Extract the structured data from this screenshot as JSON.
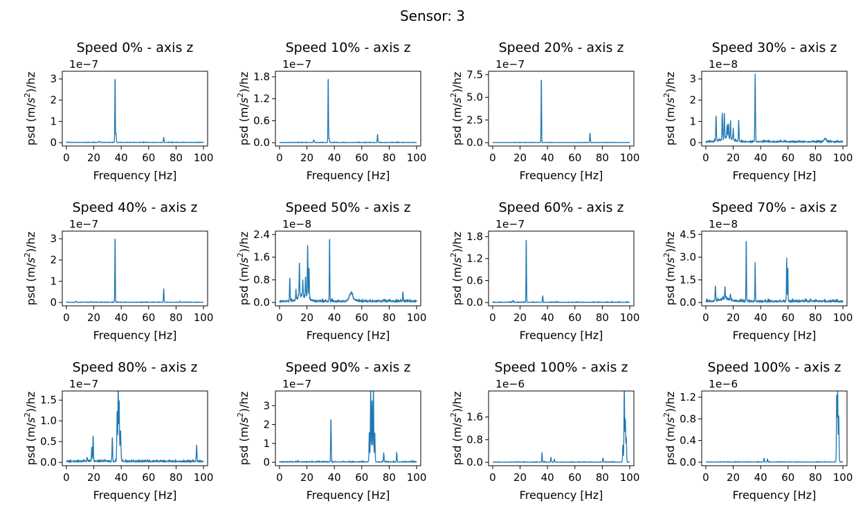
{
  "figure": {
    "suptitle": "Sensor: 3",
    "line_color": "#1f77b4"
  },
  "chart_data": [
    {
      "type": "line",
      "title": "Speed 0% - axis z",
      "xlabel": "Frequency [Hz]",
      "ylabel_pre": "psd (m/",
      "ylabel_s": "s",
      "ylabel_sup": "2",
      "ylabel_post": ")/hz",
      "offset_text": "1e−7",
      "xlim": [
        -3,
        103
      ],
      "xticks": [
        0,
        20,
        40,
        60,
        80,
        100
      ],
      "ylim": [
        -0.16,
        3.36
      ],
      "yticks": [
        0,
        1,
        2,
        3
      ],
      "ytick_labels": [
        "0",
        "1",
        "2",
        "3"
      ],
      "series": [
        {
          "noise": 0.012,
          "seed": 11,
          "peaks": [
            [
              24,
              0.06,
              0.4
            ],
            [
              35.5,
              3.2,
              0.25
            ],
            [
              36.2,
              0.45,
              0.3
            ],
            [
              71,
              0.25,
              0.3
            ]
          ],
          "bumps": []
        }
      ]
    },
    {
      "type": "line",
      "title": "Speed 10% - axis z",
      "xlabel": "Frequency [Hz]",
      "ylabel_pre": "psd (m/",
      "ylabel_s": "s",
      "ylabel_sup": "2",
      "ylabel_post": ")/hz",
      "offset_text": "1e−7",
      "xlim": [
        -3,
        103
      ],
      "xticks": [
        0,
        20,
        40,
        60,
        80,
        100
      ],
      "ylim": [
        -0.09,
        1.95
      ],
      "yticks": [
        0,
        0.6,
        1.2,
        1.8
      ],
      "ytick_labels": [
        "0.0",
        "0.6",
        "1.2",
        "1.8"
      ],
      "series": [
        {
          "noise": 0.008,
          "seed": 12,
          "peaks": [
            [
              25,
              0.07,
              0.4
            ],
            [
              35.5,
              1.86,
              0.25
            ],
            [
              36.2,
              0.12,
              0.3
            ],
            [
              71.5,
              0.22,
              0.3
            ]
          ],
          "bumps": []
        }
      ]
    },
    {
      "type": "line",
      "title": "Speed 20% - axis z",
      "xlabel": "Frequency [Hz]",
      "ylabel_pre": "psd (m/",
      "ylabel_s": "s",
      "ylabel_sup": "2",
      "ylabel_post": ")/hz",
      "offset_text": "1e−7",
      "xlim": [
        -3,
        103
      ],
      "xticks": [
        0,
        20,
        40,
        60,
        80,
        100
      ],
      "ylim": [
        -0.37,
        7.87
      ],
      "yticks": [
        0,
        2.5,
        5.0,
        7.5
      ],
      "ytick_labels": [
        "0.0",
        "2.5",
        "5.0",
        "7.5"
      ],
      "series": [
        {
          "noise": 0.02,
          "seed": 13,
          "peaks": [
            [
              35.5,
              7.45,
              0.25
            ],
            [
              71,
              1.05,
              0.3
            ]
          ],
          "bumps": []
        }
      ]
    },
    {
      "type": "line",
      "title": "Speed 30% - axis z",
      "xlabel": "Frequency [Hz]",
      "ylabel_pre": "psd (m/",
      "ylabel_s": "s",
      "ylabel_sup": "2",
      "ylabel_post": ")/hz",
      "offset_text": "1e−8",
      "xlim": [
        -3,
        103
      ],
      "xticks": [
        0,
        20,
        40,
        60,
        80,
        100
      ],
      "ylim": [
        -0.16,
        3.36
      ],
      "yticks": [
        0,
        1,
        2,
        3
      ],
      "ytick_labels": [
        "0",
        "1",
        "2",
        "3"
      ],
      "series": [
        {
          "noise": 0.06,
          "seed": 14,
          "peaks": [
            [
              7.5,
              1.25,
              0.3
            ],
            [
              12,
              1.2,
              0.3
            ],
            [
              13.5,
              1.25,
              0.3
            ],
            [
              15.5,
              0.6,
              0.3
            ],
            [
              16.5,
              0.7,
              0.3
            ],
            [
              18,
              0.9,
              0.3
            ],
            [
              20,
              0.5,
              0.3
            ],
            [
              24,
              1.0,
              0.3
            ],
            [
              36,
              3.2,
              0.3
            ],
            [
              87,
              0.15,
              1.0
            ]
          ],
          "bumps": [
            [
              15,
              0.25,
              6
            ]
          ]
        }
      ]
    },
    {
      "type": "line",
      "title": "Speed 40% - axis z",
      "xlabel": "Frequency [Hz]",
      "ylabel_pre": "psd (m/",
      "ylabel_s": "s",
      "ylabel_sup": "2",
      "ylabel_post": ")/hz",
      "offset_text": "1e−7",
      "xlim": [
        -3,
        103
      ],
      "xticks": [
        0,
        20,
        40,
        60,
        80,
        100
      ],
      "ylim": [
        -0.16,
        3.36
      ],
      "yticks": [
        0,
        1,
        2,
        3
      ],
      "ytick_labels": [
        "0",
        "1",
        "2",
        "3"
      ],
      "series": [
        {
          "noise": 0.012,
          "seed": 15,
          "peaks": [
            [
              7,
              0.05,
              0.4
            ],
            [
              18,
              0.04,
              0.4
            ],
            [
              35.5,
              3.22,
              0.25
            ],
            [
              71,
              0.65,
              0.3
            ],
            [
              83,
              0.03,
              0.4
            ]
          ],
          "bumps": []
        }
      ]
    },
    {
      "type": "line",
      "title": "Speed 50% - axis z",
      "xlabel": "Frequency [Hz]",
      "ylabel_pre": "psd (m/",
      "ylabel_s": "s",
      "ylabel_sup": "2",
      "ylabel_post": ")/hz",
      "offset_text": "1e−8",
      "xlim": [
        -3,
        103
      ],
      "xticks": [
        0,
        20,
        40,
        60,
        80,
        100
      ],
      "ylim": [
        -0.12,
        2.52
      ],
      "yticks": [
        0,
        0.8,
        1.6,
        2.4
      ],
      "ytick_labels": [
        "0.0",
        "0.8",
        "1.6",
        "2.4"
      ],
      "series": [
        {
          "noise": 0.06,
          "seed": 16,
          "peaks": [
            [
              7.5,
              0.85,
              0.3
            ],
            [
              12,
              0.35,
              0.3
            ],
            [
              14.5,
              1.2,
              0.3
            ],
            [
              17,
              0.5,
              0.3
            ],
            [
              19,
              0.7,
              0.3
            ],
            [
              20.5,
              1.95,
              0.3
            ],
            [
              21.5,
              1.1,
              0.3
            ],
            [
              36.5,
              2.35,
              0.25
            ],
            [
              52,
              0.22,
              1.5
            ],
            [
              90,
              0.35,
              0.3
            ]
          ],
          "bumps": [
            [
              17,
              0.3,
              5
            ],
            [
              53,
              0.12,
              3
            ]
          ]
        }
      ]
    },
    {
      "type": "line",
      "title": "Speed 60% - axis z",
      "xlabel": "Frequency [Hz]",
      "ylabel_pre": "psd (m/",
      "ylabel_s": "s",
      "ylabel_sup": "2",
      "ylabel_post": ")/hz",
      "offset_text": "1e−7",
      "xlim": [
        -3,
        103
      ],
      "xticks": [
        0,
        20,
        40,
        60,
        80,
        100
      ],
      "ylim": [
        -0.09,
        1.95
      ],
      "yticks": [
        0,
        0.6,
        1.2,
        1.8
      ],
      "ytick_labels": [
        "0.0",
        "0.6",
        "1.2",
        "1.8"
      ],
      "series": [
        {
          "noise": 0.01,
          "seed": 17,
          "peaks": [
            [
              15,
              0.05,
              0.4
            ],
            [
              24.5,
              1.83,
              0.25
            ],
            [
              36.5,
              0.18,
              0.3
            ]
          ],
          "bumps": []
        }
      ]
    },
    {
      "type": "line",
      "title": "Speed 70% - axis z",
      "xlabel": "Frequency [Hz]",
      "ylabel_pre": "psd (m/",
      "ylabel_s": "s",
      "ylabel_sup": "2",
      "ylabel_post": ")/hz",
      "offset_text": "1e−8",
      "xlim": [
        -3,
        103
      ],
      "xticks": [
        0,
        20,
        40,
        60,
        80,
        100
      ],
      "ylim": [
        -0.22,
        4.72
      ],
      "yticks": [
        0,
        1.5,
        3.0,
        4.5
      ],
      "ytick_labels": [
        "0.0",
        "1.5",
        "3.0",
        "4.5"
      ],
      "series": [
        {
          "noise": 0.12,
          "seed": 18,
          "peaks": [
            [
              7,
              1.05,
              0.3
            ],
            [
              14,
              0.8,
              0.3
            ],
            [
              18,
              0.45,
              0.3
            ],
            [
              29.5,
              4.3,
              0.25
            ],
            [
              36,
              2.5,
              0.25
            ],
            [
              59,
              2.9,
              0.25
            ],
            [
              59.8,
              2.35,
              0.25
            ]
          ],
          "bumps": [
            [
              14,
              0.25,
              5
            ]
          ]
        }
      ]
    },
    {
      "type": "line",
      "title": "Speed 80% - axis z",
      "xlabel": "Frequency [Hz]",
      "ylabel_pre": "psd (m/",
      "ylabel_s": "s",
      "ylabel_sup": "2",
      "ylabel_post": ")/hz",
      "offset_text": "1e−7",
      "xlim": [
        -3,
        103
      ],
      "xticks": [
        0,
        20,
        40,
        60,
        80,
        100
      ],
      "ylim": [
        -0.08,
        1.72
      ],
      "yticks": [
        0,
        0.5,
        1.0,
        1.5
      ],
      "ytick_labels": [
        "0.0",
        "0.5",
        "1.0",
        "1.5"
      ],
      "series": [
        {
          "noise": 0.035,
          "seed": 19,
          "peaks": [
            [
              15,
              0.08,
              0.4
            ],
            [
              18.5,
              0.35,
              0.3
            ],
            [
              19.5,
              0.6,
              0.3
            ],
            [
              33.5,
              0.6,
              0.3
            ],
            [
              37,
              1.1,
              0.3
            ],
            [
              37.8,
              1.63,
              0.3
            ],
            [
              38.5,
              1.3,
              0.3
            ],
            [
              39.5,
              0.7,
              0.4
            ],
            [
              95,
              0.4,
              0.3
            ]
          ],
          "bumps": [
            [
              38,
              0.25,
              1.4
            ]
          ]
        }
      ]
    },
    {
      "type": "line",
      "title": "Speed 90% - axis z",
      "xlabel": "Frequency [Hz]",
      "ylabel_pre": "psd (m/",
      "ylabel_s": "s",
      "ylabel_sup": "2",
      "ylabel_post": ")/hz",
      "offset_text": "1e−7",
      "xlim": [
        -3,
        103
      ],
      "xticks": [
        0,
        20,
        40,
        60,
        80,
        100
      ],
      "ylim": [
        -0.18,
        3.78
      ],
      "yticks": [
        0,
        1,
        2,
        3
      ],
      "ytick_labels": [
        "0",
        "1",
        "2",
        "3"
      ],
      "series": [
        {
          "noise": 0.03,
          "seed": 20,
          "peaks": [
            [
              37.5,
              2.35,
              0.3
            ],
            [
              65.5,
              1.6,
              0.3
            ],
            [
              66.5,
              3.6,
              0.3
            ],
            [
              67.5,
              3.1,
              0.3
            ],
            [
              68.5,
              3.62,
              0.3
            ],
            [
              69.5,
              1.5,
              0.3
            ],
            [
              76,
              0.5,
              0.3
            ],
            [
              85.5,
              0.5,
              0.3
            ]
          ],
          "bumps": [
            [
              67.5,
              0.6,
              1.5
            ]
          ]
        }
      ]
    },
    {
      "type": "line",
      "title": "Speed 100% - axis z",
      "xlabel": "Frequency [Hz]",
      "ylabel_pre": "psd (m/",
      "ylabel_s": "s",
      "ylabel_sup": "2",
      "ylabel_post": ")/hz",
      "offset_text": "1e−6",
      "xlim": [
        -3,
        103
      ],
      "xticks": [
        0,
        20,
        40,
        60,
        80,
        100
      ],
      "ylim": [
        -0.12,
        2.52
      ],
      "yticks": [
        0,
        0.8,
        1.6
      ],
      "ytick_labels": [
        "0.0",
        "0.8",
        "1.6"
      ],
      "series": [
        {
          "noise": 0.01,
          "seed": 21,
          "peaks": [
            [
              36,
              0.35,
              0.25
            ],
            [
              42.5,
              0.18,
              0.3
            ],
            [
              45,
              0.1,
              0.3
            ],
            [
              80.5,
              0.15,
              0.3
            ],
            [
              95,
              0.6,
              0.3
            ],
            [
              96,
              2.5,
              0.3
            ],
            [
              96.8,
              1.3,
              0.3
            ],
            [
              97.5,
              0.8,
              0.3
            ]
          ],
          "bumps": [
            [
              96.5,
              0.5,
              0.8
            ]
          ]
        }
      ]
    },
    {
      "type": "line",
      "title": "Speed 100% - axis z",
      "xlabel": "Frequency [Hz]",
      "ylabel_pre": "psd (m/",
      "ylabel_s": "s",
      "ylabel_sup": "2",
      "ylabel_post": ")/hz",
      "offset_text": "1e−6",
      "xlim": [
        -3,
        103
      ],
      "xticks": [
        0,
        20,
        40,
        60,
        80,
        100
      ],
      "ylim": [
        -0.065,
        1.315
      ],
      "yticks": [
        0,
        0.4,
        0.8,
        1.2
      ],
      "ytick_labels": [
        "0.0",
        "0.4",
        "0.8",
        "1.2"
      ],
      "series": [
        {
          "noise": 0.005,
          "seed": 22,
          "peaks": [
            [
              42.5,
              0.07,
              0.3
            ],
            [
              45,
              0.05,
              0.3
            ],
            [
              95.5,
              1.25,
              0.3
            ],
            [
              96.2,
              1.2,
              0.3
            ],
            [
              97,
              0.75,
              0.3
            ]
          ],
          "bumps": [
            [
              96.3,
              0.3,
              0.7
            ]
          ]
        }
      ]
    }
  ]
}
